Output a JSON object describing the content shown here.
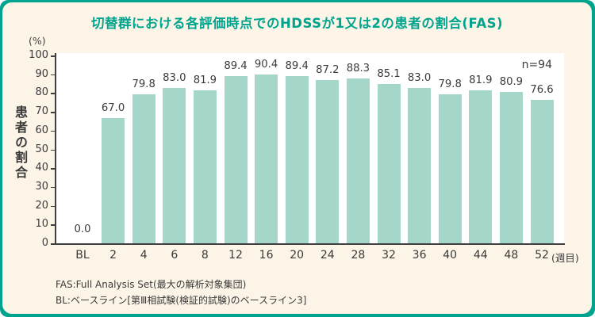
{
  "chart_data": {
    "type": "bar",
    "title": "切替群における各評価時点でのHDSSが1又は2の患者の割合(FAS)",
    "unit_label": "(%)",
    "ylabel": "患者の割合",
    "xlabel_suffix": "(週目)",
    "annotation": "n=94",
    "categories": [
      "BL",
      "2",
      "4",
      "6",
      "8",
      "12",
      "16",
      "20",
      "24",
      "28",
      "32",
      "36",
      "40",
      "44",
      "48",
      "52"
    ],
    "values": [
      0.0,
      67.0,
      79.8,
      83.0,
      81.9,
      89.4,
      90.4,
      89.4,
      87.2,
      88.3,
      85.1,
      83.0,
      79.8,
      81.9,
      80.9,
      76.6
    ],
    "ylim": [
      0,
      100
    ],
    "ytick_step": 10,
    "grid": false,
    "legend_position": "none",
    "bar_color": "#A4D6C9"
  },
  "colors": {
    "frame_teal": "#00A48E",
    "panel_cream": "#FCF4E6",
    "plot_background": "#FFFFFF",
    "bar_mint": "#A4D6C9",
    "title_teal": "#00A48E",
    "text_dark": "#3A3A3A"
  },
  "footnotes": [
    "FAS:Full Analysis Set(最大の解析対象集団)",
    "BL:ベースライン[第Ⅲ相試験(検証的試験)のベースライン3]"
  ]
}
